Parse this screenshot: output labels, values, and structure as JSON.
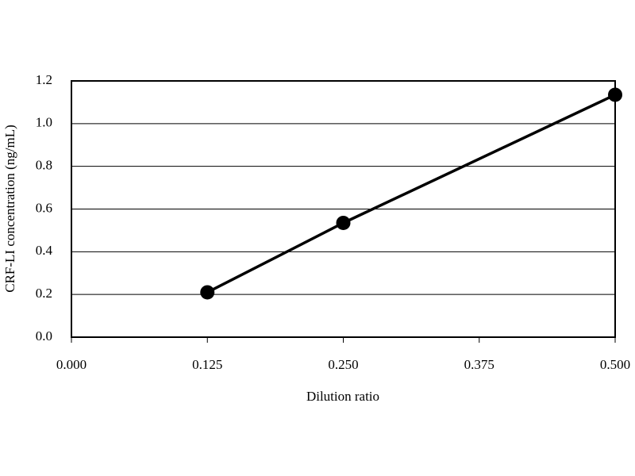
{
  "chart_data": {
    "type": "line",
    "x_label": "Dilution ratio",
    "y_label": "CRF-LI concentration (ng/mL)",
    "x": [
      0.125,
      0.25,
      0.5
    ],
    "values": [
      0.21,
      0.535,
      1.135
    ],
    "color": "#000000",
    "xlim": [
      0,
      0.5
    ],
    "xticks": [
      {
        "value": 0,
        "label": "0.000"
      },
      {
        "value": 0.125,
        "label": "0.125"
      },
      {
        "value": 0.25,
        "label": "0.250"
      },
      {
        "value": 0.375,
        "label": "0.375"
      },
      {
        "value": 0.5,
        "label": "0.500"
      }
    ],
    "ylim": [
      0,
      1.2
    ],
    "yticks": [
      {
        "value": 0,
        "label": "0.0"
      },
      0.2,
      0.4,
      0.6,
      0.8,
      {
        "value": 1,
        "label": "1.0"
      },
      1.2
    ],
    "grid": true
  }
}
